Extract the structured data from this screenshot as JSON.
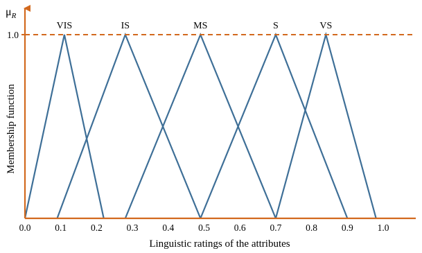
{
  "chart_data": {
    "type": "line",
    "title": "",
    "xlabel": "Linguistic ratings of the attributes",
    "ylabel": "Membership function",
    "y_symbol": "μ",
    "y_symbol_sub": "R",
    "xlim": [
      0.0,
      1.0
    ],
    "ylim": [
      0.0,
      1.0
    ],
    "x_ticks": [
      "0.0",
      "0.1",
      "0.2",
      "0.3",
      "0.4",
      "0.5",
      "0.6",
      "0.7",
      "0.8",
      "0.9",
      "1.0"
    ],
    "y_ticks": [
      "1.0"
    ],
    "reference_line": {
      "y": 1.0,
      "style": "dashed",
      "color": "#d2691e"
    },
    "axis_color": "#d2691e",
    "series_color": "#3e6f97",
    "series": [
      {
        "label": "VIS",
        "x": [
          0.0,
          0.11,
          0.22
        ],
        "y": [
          0,
          1,
          0
        ]
      },
      {
        "label": "IS",
        "x": [
          0.09,
          0.28,
          0.49
        ],
        "y": [
          0,
          1,
          0
        ]
      },
      {
        "label": "MS",
        "x": [
          0.28,
          0.49,
          0.7
        ],
        "y": [
          0,
          1,
          0
        ]
      },
      {
        "label": "S",
        "x": [
          0.49,
          0.7,
          0.9
        ],
        "y": [
          0,
          1,
          0
        ]
      },
      {
        "label": "VS",
        "x": [
          0.7,
          0.84,
          0.98
        ],
        "y": [
          0,
          1,
          0
        ]
      }
    ]
  }
}
